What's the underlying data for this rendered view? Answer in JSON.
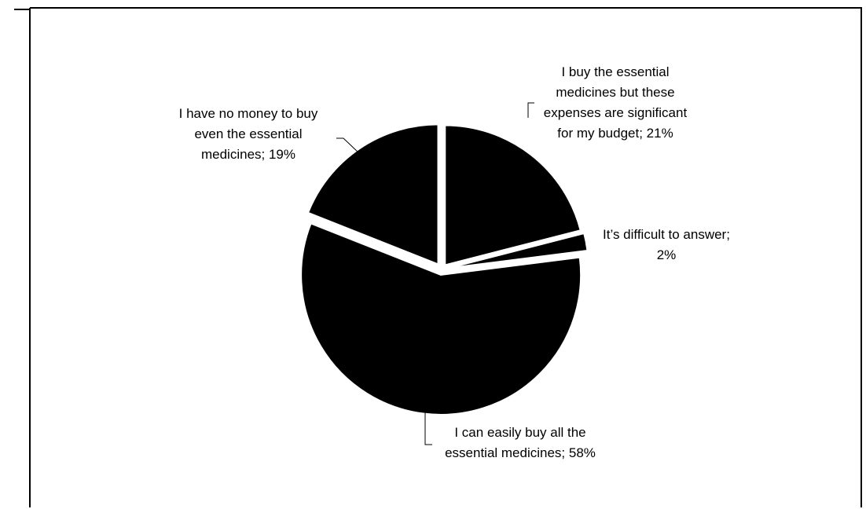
{
  "chart_data": {
    "type": "pie",
    "slices": [
      {
        "label": "I buy the essential medicines but these expenses are significant for my budget",
        "value": 21,
        "display": [
          "I buy the essential",
          "medicines but these",
          "expenses are significant",
          "for my budget; 21%"
        ]
      },
      {
        "label": "It’s difficult to answer",
        "value": 2,
        "display": [
          "It’s difficult to answer;",
          "2%"
        ]
      },
      {
        "label": "I can easily buy all the essential medicines",
        "value": 58,
        "display": [
          "I can easily buy all the",
          "essential medicines; 58%"
        ]
      },
      {
        "label": "I have no money to buy even the essential medicines",
        "value": 19,
        "display": [
          "I have no money to buy",
          "even the essential",
          "medicines; 19%"
        ]
      }
    ],
    "colors": {
      "fill": "#000000",
      "border": "#000000",
      "background": "#ffffff"
    },
    "legend": "none"
  }
}
